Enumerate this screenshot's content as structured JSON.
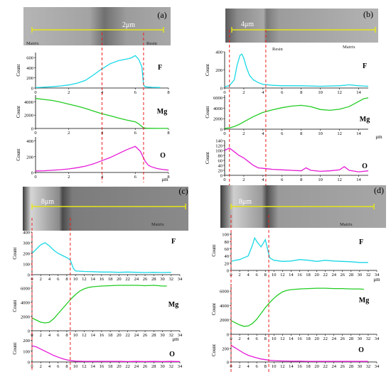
{
  "figure": {
    "colors": {
      "F": "#19d8e6",
      "Mg": "#22cc22",
      "O": "#e619d6",
      "yellow_line": "#e6e619",
      "red_dashed": "#ee1c1c"
    }
  },
  "panels": [
    {
      "id": "a",
      "letter": "(a)",
      "scale_bar": "2μm",
      "image_labels": [
        "Matrix",
        "Resin"
      ],
      "x_unit": "μm",
      "x_ticks": [
        "0",
        "2",
        "4",
        "6",
        "8"
      ],
      "boundary_x": [
        4.0,
        6.5
      ],
      "element_labels": [
        "F",
        "Mg",
        "O"
      ],
      "y_label": "Count",
      "y_ticks": [
        [
          "0",
          "200",
          "400",
          "600"
        ],
        [
          "0",
          "2000",
          "4000"
        ],
        [
          "0",
          "200",
          "400"
        ]
      ]
    },
    {
      "id": "b",
      "letter": "(b)",
      "scale_bar": "4μm",
      "image_labels": [
        "Resin",
        "Matrix"
      ],
      "x_unit": "μm",
      "x_ticks": [
        "0",
        "2",
        "4",
        "6",
        "8",
        "10",
        "12",
        "14"
      ],
      "boundary_x": [
        0.5,
        4.3
      ],
      "element_labels": [
        "F",
        "Mg",
        "O"
      ],
      "y_label": "Count",
      "y_ticks": [
        [
          "0",
          "200",
          "400"
        ],
        [
          "0",
          "2000",
          "4000",
          "6000"
        ],
        [
          "0",
          "20",
          "40",
          "60",
          "80",
          "100",
          "120",
          "140"
        ]
      ]
    },
    {
      "id": "c",
      "letter": "(c)",
      "scale_bar": "8μm",
      "image_labels": [
        "Matrix"
      ],
      "x_unit": "μm",
      "x_ticks": [
        "0",
        "2",
        "4",
        "6",
        "8",
        "10",
        "12",
        "14",
        "16",
        "18",
        "20",
        "22",
        "24",
        "26",
        "28",
        "30",
        "32",
        "34"
      ],
      "boundary_x": [
        0.0,
        8.8
      ],
      "element_labels": [
        "F",
        "Mg",
        "O"
      ],
      "y_label": "Count",
      "y_ticks": [
        [
          "0",
          "100",
          "200",
          "300",
          "400"
        ],
        [
          "0",
          "2000",
          "4000",
          "6000"
        ],
        [
          "0",
          "100",
          "200"
        ]
      ]
    },
    {
      "id": "d",
      "letter": "(d)",
      "scale_bar": "8μm",
      "image_labels": [
        "Matrix"
      ],
      "x_unit": "μm",
      "x_ticks": [
        "0",
        "2",
        "4",
        "6",
        "8",
        "10",
        "12",
        "14",
        "16",
        "18",
        "20",
        "22",
        "24",
        "26",
        "28",
        "30",
        "32",
        "34"
      ],
      "boundary_x": [
        0.0,
        8.8
      ],
      "element_labels": [
        "F",
        "Mg",
        "O"
      ],
      "y_label": "Count",
      "y_ticks": [
        [
          "0",
          "20",
          "40",
          "60",
          "80",
          "100"
        ],
        [
          "0",
          "2000",
          "4000",
          "6000"
        ],
        [
          "0",
          "200"
        ]
      ]
    }
  ],
  "chart_data": [
    {
      "type": "line",
      "panel": "a",
      "title": "",
      "xlabel": "μm",
      "ylabel": "Count",
      "xlim": [
        0,
        8
      ],
      "series": [
        {
          "name": "F",
          "ylim": [
            0,
            700
          ],
          "x": [
            0,
            0.5,
            1,
            1.5,
            2,
            2.5,
            3,
            3.5,
            4,
            4.5,
            5,
            5.3,
            5.6,
            5.8,
            6,
            6.2,
            6.4,
            6.5,
            6.6,
            6.8,
            7,
            7.5
          ],
          "y": [
            8,
            15,
            25,
            40,
            60,
            95,
            150,
            260,
            380,
            480,
            540,
            560,
            580,
            600,
            640,
            570,
            420,
            60,
            25,
            18,
            14,
            10
          ]
        },
        {
          "name": "Mg",
          "ylim": [
            0,
            5000
          ],
          "x": [
            0,
            0.5,
            1,
            1.5,
            2,
            2.5,
            3,
            3.5,
            4,
            4.5,
            5,
            5.5,
            6,
            6.2,
            6.4,
            6.5,
            6.7,
            7,
            7.5,
            8
          ],
          "y": [
            4500,
            4350,
            4200,
            3950,
            3650,
            3350,
            3000,
            2600,
            2200,
            1900,
            1550,
            1250,
            1000,
            700,
            300,
            100,
            30,
            20,
            15,
            10
          ]
        },
        {
          "name": "O",
          "ylim": [
            0,
            450
          ],
          "x": [
            0,
            0.5,
            1,
            1.5,
            2,
            2.5,
            3,
            3.5,
            4,
            4.5,
            5,
            5.5,
            6,
            6.3,
            6.6,
            6.8,
            7,
            7.3,
            7.6,
            8
          ],
          "y": [
            20,
            22,
            28,
            35,
            45,
            60,
            80,
            110,
            150,
            190,
            240,
            290,
            330,
            270,
            140,
            90,
            70,
            50,
            40,
            30
          ]
        }
      ]
    },
    {
      "type": "line",
      "panel": "b",
      "title": "",
      "xlabel": "μm",
      "ylabel": "Count",
      "xlim": [
        0,
        15
      ],
      "series": [
        {
          "name": "F",
          "ylim": [
            0,
            400
          ],
          "x": [
            0,
            0.5,
            1,
            1.3,
            1.6,
            1.8,
            2,
            2.3,
            2.6,
            3,
            3.5,
            4,
            5,
            6,
            8,
            10,
            12,
            13,
            14,
            15
          ],
          "y": [
            15,
            25,
            90,
            250,
            360,
            375,
            330,
            220,
            140,
            90,
            60,
            40,
            30,
            25,
            25,
            20,
            25,
            35,
            25,
            20
          ]
        },
        {
          "name": "Mg",
          "ylim": [
            0,
            6500
          ],
          "x": [
            0,
            0.5,
            1,
            1.5,
            2,
            3,
            4,
            5,
            6,
            7,
            8,
            9,
            10,
            11,
            12,
            13,
            14,
            14.5,
            15
          ],
          "y": [
            150,
            250,
            500,
            900,
            1400,
            2400,
            3200,
            3700,
            4100,
            4400,
            4550,
            4300,
            3750,
            3600,
            3800,
            4300,
            5300,
            5800,
            6000
          ]
        },
        {
          "name": "O",
          "ylim": [
            0,
            140
          ],
          "x": [
            0,
            0.5,
            1,
            1.5,
            2,
            2.5,
            3,
            3.5,
            4,
            5,
            6,
            7,
            8,
            8.5,
            9,
            10,
            11,
            12,
            12.5,
            13,
            14,
            15
          ],
          "y": [
            100,
            110,
            95,
            80,
            70,
            55,
            40,
            30,
            28,
            24,
            22,
            20,
            18,
            30,
            20,
            16,
            18,
            22,
            35,
            20,
            14,
            18
          ]
        }
      ]
    },
    {
      "type": "line",
      "panel": "c",
      "title": "",
      "xlabel": "μm",
      "ylabel": "Count",
      "xlim": [
        0,
        34
      ],
      "series": [
        {
          "name": "F",
          "ylim": [
            0,
            400
          ],
          "x": [
            0,
            1,
            2,
            3,
            4,
            5,
            6,
            7,
            8,
            8.8,
            9.5,
            10,
            12,
            14,
            16,
            18,
            20,
            22,
            24,
            26,
            28,
            30,
            32
          ],
          "y": [
            200,
            240,
            280,
            300,
            270,
            230,
            200,
            180,
            160,
            140,
            60,
            35,
            30,
            28,
            25,
            25,
            22,
            25,
            22,
            20,
            22,
            20,
            22
          ]
        },
        {
          "name": "Mg",
          "ylim": [
            0,
            7000
          ],
          "x": [
            0,
            1,
            2,
            3,
            4,
            5,
            6,
            7,
            8,
            9,
            10,
            11,
            12,
            13,
            14,
            16,
            18,
            20,
            22,
            24,
            26,
            28,
            30,
            31
          ],
          "y": [
            1800,
            1500,
            1200,
            1100,
            1200,
            1700,
            2400,
            3100,
            3800,
            4500,
            5100,
            5600,
            5900,
            6100,
            6200,
            6300,
            6350,
            6400,
            6400,
            6400,
            6350,
            6400,
            6300,
            6300
          ]
        },
        {
          "name": "O",
          "ylim": [
            0,
            250
          ],
          "x": [
            0,
            1,
            2,
            3,
            4,
            5,
            6,
            7,
            8,
            9,
            10,
            12,
            14,
            16,
            18,
            20,
            22,
            24,
            26,
            28,
            30,
            32,
            34
          ],
          "y": [
            150,
            140,
            120,
            100,
            80,
            60,
            45,
            30,
            20,
            12,
            8,
            6,
            5,
            6,
            5,
            5,
            4,
            5,
            4,
            5,
            4,
            5,
            4
          ]
        }
      ]
    },
    {
      "type": "line",
      "panel": "d",
      "title": "",
      "xlabel": "μm",
      "ylabel": "Count",
      "xlim": [
        0,
        34
      ],
      "series": [
        {
          "name": "F",
          "ylim": [
            0,
            110
          ],
          "x": [
            0,
            1,
            2,
            3,
            4,
            5,
            5.5,
            6,
            7,
            8,
            8.5,
            9,
            10,
            12,
            14,
            16,
            18,
            20,
            22,
            24,
            26,
            28,
            30,
            32
          ],
          "y": [
            25,
            28,
            30,
            35,
            40,
            70,
            90,
            80,
            65,
            85,
            60,
            35,
            28,
            25,
            26,
            30,
            28,
            25,
            28,
            26,
            25,
            24,
            22,
            22
          ]
        },
        {
          "name": "Mg",
          "ylim": [
            0,
            7000
          ],
          "x": [
            0,
            1,
            2,
            3,
            4,
            5,
            6,
            7,
            8,
            9,
            10,
            11,
            12,
            13,
            14,
            16,
            18,
            20,
            22,
            24,
            26,
            28,
            30,
            31
          ],
          "y": [
            1900,
            1600,
            1300,
            1100,
            1150,
            1500,
            2100,
            2900,
            3700,
            4400,
            5000,
            5500,
            5900,
            6100,
            6200,
            6300,
            6350,
            6400,
            6400,
            6350,
            6350,
            6300,
            6300,
            6250
          ]
        },
        {
          "name": "O",
          "ylim": [
            0,
            350
          ],
          "x": [
            0,
            1,
            2,
            3,
            4,
            5,
            6,
            7,
            8,
            9,
            10,
            12,
            14,
            16,
            18,
            20,
            22,
            24,
            26,
            28,
            30,
            32
          ],
          "y": [
            250,
            210,
            170,
            130,
            100,
            80,
            60,
            45,
            35,
            25,
            20,
            15,
            12,
            12,
            10,
            10,
            9,
            10,
            9,
            9,
            8,
            8
          ]
        }
      ]
    }
  ]
}
